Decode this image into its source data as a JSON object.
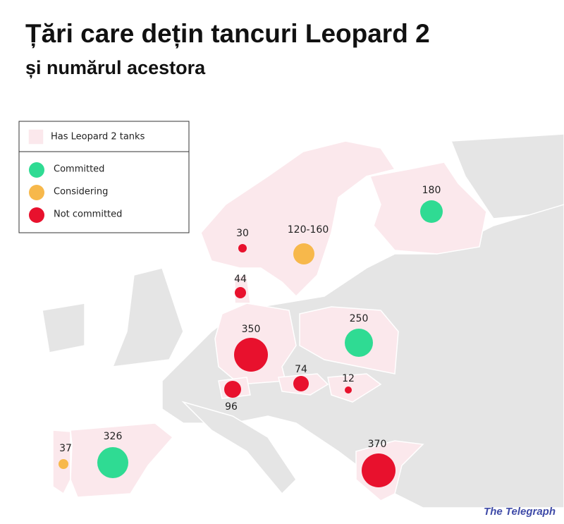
{
  "header": {
    "title": "Țări care dețin tancuri Leopard 2",
    "subtitle": "și numărul acestora"
  },
  "legend": {
    "region": "Has Leopard 2 tanks",
    "statuses": [
      {
        "label": "Committed",
        "color": "#2fdb93"
      },
      {
        "label": "Considering",
        "color": "#f7b84b"
      },
      {
        "label": "Not committed",
        "color": "#e8112d"
      }
    ]
  },
  "markers": [
    {
      "label": "180",
      "status": "Committed"
    },
    {
      "label": "30",
      "status": "Not committed"
    },
    {
      "label": "120-160",
      "status": "Considering"
    },
    {
      "label": "44",
      "status": "Not committed"
    },
    {
      "label": "350",
      "status": "Not committed"
    },
    {
      "label": "250",
      "status": "Committed"
    },
    {
      "label": "74",
      "status": "Not committed"
    },
    {
      "label": "12",
      "status": "Not committed"
    },
    {
      "label": "96",
      "status": "Not committed"
    },
    {
      "label": "326",
      "status": "Committed"
    },
    {
      "label": "37",
      "status": "Considering"
    },
    {
      "label": "370",
      "status": "Not committed"
    }
  ],
  "source": "The Telegraph"
}
